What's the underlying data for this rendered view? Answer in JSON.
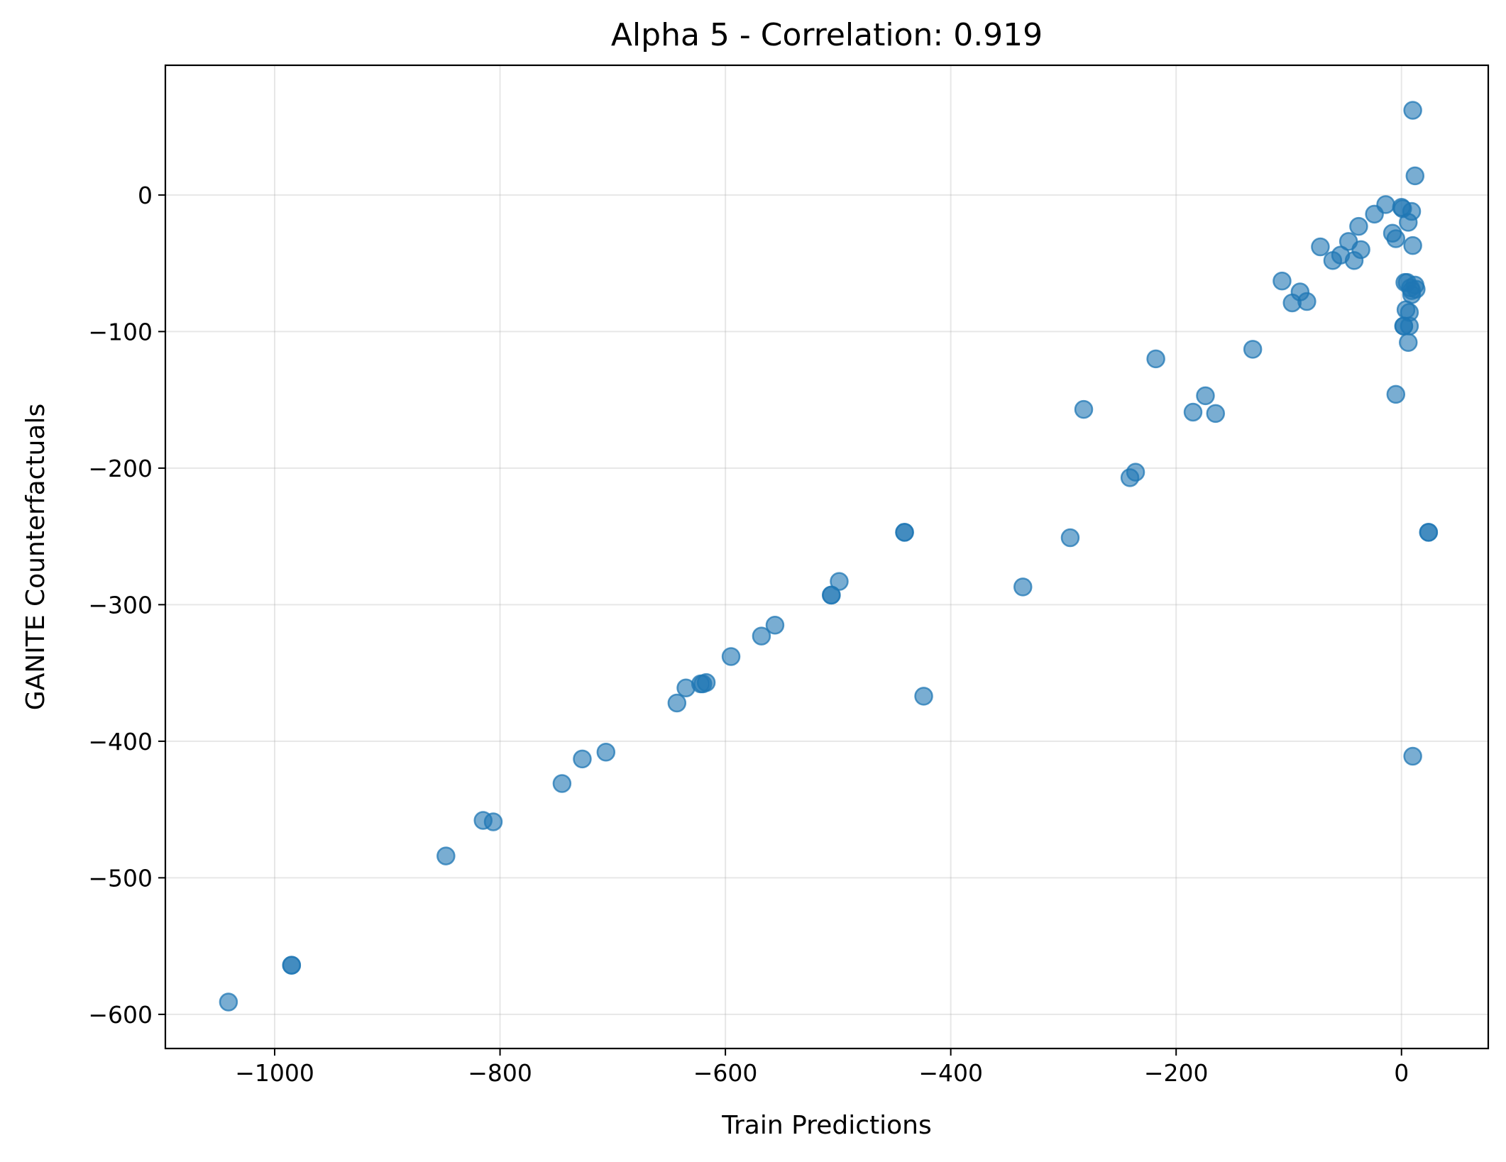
{
  "chart_data": {
    "type": "scatter",
    "title": "Alpha 5 - Correlation: 0.919",
    "xlabel": "Train Predictions",
    "ylabel": "GANITE Counterfactuals",
    "xlim": [
      -1097,
      77
    ],
    "ylim": [
      -625,
      95
    ],
    "xticks": [
      -1000,
      -800,
      -600,
      -400,
      -200,
      0
    ],
    "yticks": [
      0,
      -100,
      -200,
      -300,
      -400,
      -500,
      -600
    ],
    "xtick_labels": [
      "−1000",
      "−800",
      "−600",
      "−400",
      "−200",
      "0"
    ],
    "ytick_labels": [
      "0",
      "−100",
      "−200",
      "−300",
      "−400",
      "−500",
      "−600"
    ],
    "grid": true,
    "point_color": "#1f77b4",
    "point_alpha": 0.6,
    "points": [
      [
        -1041,
        -591
      ],
      [
        -985,
        -564
      ],
      [
        -985,
        -564
      ],
      [
        -848,
        -484
      ],
      [
        -815,
        -458
      ],
      [
        -806,
        -459
      ],
      [
        -745,
        -431
      ],
      [
        -727,
        -413
      ],
      [
        -706,
        -408
      ],
      [
        -643,
        -372
      ],
      [
        -635,
        -361
      ],
      [
        -622,
        -358
      ],
      [
        -620,
        -358
      ],
      [
        -617,
        -357
      ],
      [
        -595,
        -338
      ],
      [
        -568,
        -323
      ],
      [
        -556,
        -315
      ],
      [
        -506,
        -293
      ],
      [
        -506,
        -293
      ],
      [
        -499,
        -283
      ],
      [
        -441,
        -247
      ],
      [
        -441,
        -247
      ],
      [
        -424,
        -367
      ],
      [
        -336,
        -287
      ],
      [
        -294,
        -251
      ],
      [
        -282,
        -157
      ],
      [
        -241,
        -207
      ],
      [
        -236,
        -203
      ],
      [
        -218,
        -120
      ],
      [
        -185,
        -159
      ],
      [
        -174,
        -147
      ],
      [
        -165,
        -160
      ],
      [
        -132,
        -113
      ],
      [
        -106,
        -63
      ],
      [
        -97,
        -79
      ],
      [
        -90,
        -71
      ],
      [
        -84,
        -78
      ],
      [
        -72,
        -38
      ],
      [
        -61,
        -48
      ],
      [
        -54,
        -44
      ],
      [
        -47,
        -34
      ],
      [
        -42,
        -48
      ],
      [
        -38,
        -23
      ],
      [
        -36,
        -40
      ],
      [
        -24,
        -14
      ],
      [
        -14,
        -7
      ],
      [
        -8,
        -28
      ],
      [
        -5,
        -32
      ],
      [
        -5,
        -146
      ],
      [
        0,
        -9
      ],
      [
        1,
        -10
      ],
      [
        2,
        -96
      ],
      [
        2,
        -96
      ],
      [
        3,
        -64
      ],
      [
        4,
        -84
      ],
      [
        5,
        -64
      ],
      [
        6,
        -20
      ],
      [
        6,
        -108
      ],
      [
        7,
        -96
      ],
      [
        7,
        -86
      ],
      [
        8,
        -68
      ],
      [
        9,
        -70
      ],
      [
        9,
        -12
      ],
      [
        9,
        -73
      ],
      [
        10,
        -37
      ],
      [
        10,
        62
      ],
      [
        10,
        -411
      ],
      [
        12,
        14
      ],
      [
        12,
        -66
      ],
      [
        13,
        -69
      ],
      [
        24,
        -247
      ],
      [
        24,
        -247
      ]
    ]
  }
}
